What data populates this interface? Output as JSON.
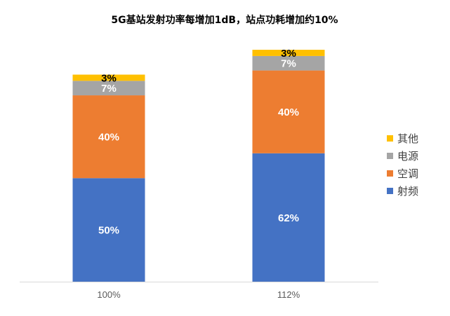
{
  "chart_data": {
    "type": "bar",
    "stacked": true,
    "title": "5G基站发射功率每增加1dB，站点功耗增加约10%",
    "categories": [
      "100%",
      "112%"
    ],
    "totals": [
      100,
      112
    ],
    "series": [
      {
        "name": "射频",
        "values": [
          50,
          62
        ],
        "labels": [
          "50%",
          "62%"
        ],
        "color": "#4472C4",
        "label_color": "#ffffff"
      },
      {
        "name": "空调",
        "values": [
          40,
          40
        ],
        "labels": [
          "40%",
          "40%"
        ],
        "color": "#ED7D31",
        "label_color": "#ffffff"
      },
      {
        "name": "电源",
        "values": [
          7,
          7
        ],
        "labels": [
          "7%",
          "7%"
        ],
        "color": "#A5A5A5",
        "label_color": "#ffffff"
      },
      {
        "name": "其他",
        "values": [
          3,
          3
        ],
        "labels": [
          "3%",
          "3%"
        ],
        "color": "#FFC000",
        "label_color": "#000000"
      }
    ],
    "legend": {
      "placement": "right",
      "order": [
        "其他",
        "电源",
        "空调",
        "射频"
      ]
    },
    "grid": false,
    "xlabel": "",
    "ylabel": ""
  }
}
